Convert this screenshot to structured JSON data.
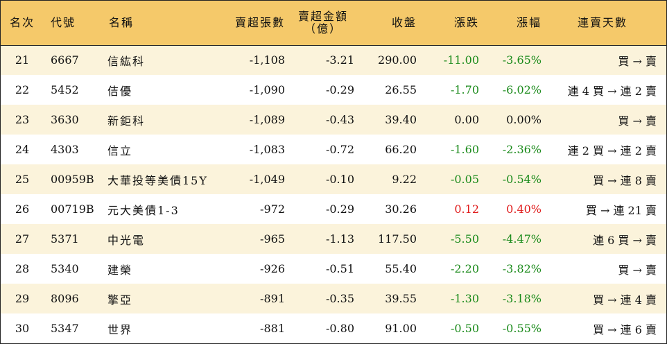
{
  "header": {
    "rank": "名次",
    "code": "代號",
    "name": "名稱",
    "lots": "賣超張數",
    "amount_line1": "賣超金額",
    "amount_line2": "（億）",
    "close": "收盤",
    "change": "漲跌",
    "pct": "漲幅",
    "streak": "連賣天數"
  },
  "rows": [
    {
      "rank": "21",
      "code": "6667",
      "name": "信紘科",
      "lots": "-1,108",
      "amount": "-3.21",
      "close": "290.00",
      "change": "-11.00",
      "pct": "-3.65%",
      "streak": "買 → 賣",
      "dir": "neg"
    },
    {
      "rank": "22",
      "code": "5452",
      "name": "佶優",
      "lots": "-1,090",
      "amount": "-0.29",
      "close": "26.55",
      "change": "-1.70",
      "pct": "-6.02%",
      "streak": "連 4 買 → 連 2 賣",
      "dir": "neg"
    },
    {
      "rank": "23",
      "code": "3630",
      "name": "新鉅科",
      "lots": "-1,089",
      "amount": "-0.43",
      "close": "39.40",
      "change": "0.00",
      "pct": "0.00%",
      "streak": "買 → 賣",
      "dir": "zero"
    },
    {
      "rank": "24",
      "code": "4303",
      "name": "信立",
      "lots": "-1,083",
      "amount": "-0.72",
      "close": "66.20",
      "change": "-1.60",
      "pct": "-2.36%",
      "streak": "連 2 買 → 連 2 賣",
      "dir": "neg"
    },
    {
      "rank": "25",
      "code": "00959B",
      "name": "大華投等美債15Y",
      "lots": "-1,049",
      "amount": "-0.10",
      "close": "9.22",
      "change": "-0.05",
      "pct": "-0.54%",
      "streak": "買 → 連 8 賣",
      "dir": "neg"
    },
    {
      "rank": "26",
      "code": "00719B",
      "name": "元大美債1-3",
      "lots": "-972",
      "amount": "-0.29",
      "close": "30.26",
      "change": "0.12",
      "pct": "0.40%",
      "streak": "買 → 連 21 賣",
      "dir": "pos"
    },
    {
      "rank": "27",
      "code": "5371",
      "name": "中光電",
      "lots": "-965",
      "amount": "-1.13",
      "close": "117.50",
      "change": "-5.50",
      "pct": "-4.47%",
      "streak": "連 6 買 → 賣",
      "dir": "neg"
    },
    {
      "rank": "28",
      "code": "5340",
      "name": "建榮",
      "lots": "-926",
      "amount": "-0.51",
      "close": "55.40",
      "change": "-2.20",
      "pct": "-3.82%",
      "streak": "買 → 賣",
      "dir": "neg"
    },
    {
      "rank": "29",
      "code": "8096",
      "name": "擎亞",
      "lots": "-891",
      "amount": "-0.35",
      "close": "39.55",
      "change": "-1.30",
      "pct": "-3.18%",
      "streak": "買 → 連 4 賣",
      "dir": "neg"
    },
    {
      "rank": "30",
      "code": "5347",
      "name": "世界",
      "lots": "-881",
      "amount": "-0.80",
      "close": "91.00",
      "change": "-0.50",
      "pct": "-0.55%",
      "streak": "買 → 連 6 賣",
      "dir": "neg"
    }
  ],
  "colors": {
    "header_bg": "#f5c96a",
    "odd_row_bg": "#fbf3db",
    "down": "#1a8a1a",
    "up": "#e01b1b"
  }
}
